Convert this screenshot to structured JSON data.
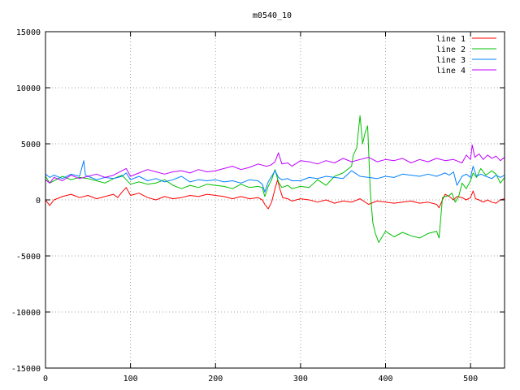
{
  "chart_data": {
    "type": "line",
    "title": "m0540_10",
    "xlabel": "",
    "ylabel": "",
    "xlim": [
      0,
      540
    ],
    "ylim": [
      -15000,
      15000
    ],
    "xticks": [
      0,
      100,
      200,
      300,
      400,
      500
    ],
    "yticks": [
      -15000,
      -10000,
      -5000,
      0,
      5000,
      10000,
      15000
    ],
    "grid": true,
    "legend_position": "top-right",
    "series": [
      {
        "name": "line 1",
        "color": "#ff0000",
        "x": [
          0,
          5,
          10,
          20,
          30,
          40,
          50,
          60,
          70,
          80,
          85,
          90,
          95,
          100,
          110,
          120,
          130,
          140,
          150,
          160,
          170,
          180,
          190,
          200,
          210,
          220,
          230,
          240,
          250,
          255,
          258,
          262,
          266,
          270,
          273,
          276,
          279,
          285,
          290,
          300,
          310,
          320,
          330,
          340,
          350,
          360,
          370,
          380,
          390,
          400,
          410,
          420,
          430,
          440,
          450,
          460,
          463,
          467,
          470,
          475,
          480,
          484,
          490,
          495,
          500,
          503,
          506,
          510,
          515,
          520,
          525,
          530,
          535,
          540
        ],
        "y": [
          0,
          -500,
          0,
          300,
          500,
          200,
          400,
          100,
          300,
          500,
          200,
          700,
          1100,
          400,
          600,
          200,
          0,
          300,
          100,
          200,
          400,
          300,
          500,
          400,
          300,
          100,
          300,
          100,
          200,
          0,
          -400,
          -800,
          -200,
          1000,
          1800,
          900,
          200,
          100,
          -100,
          100,
          0,
          -200,
          0,
          -300,
          -100,
          -200,
          100,
          -400,
          -100,
          -200,
          -300,
          -200,
          -100,
          -300,
          -200,
          -400,
          -700,
          0,
          500,
          300,
          0,
          300,
          200,
          0,
          200,
          800,
          100,
          0,
          -200,
          0,
          -200,
          -300,
          0,
          100
        ]
      },
      {
        "name": "line 2",
        "color": "#00c000",
        "x": [
          0,
          5,
          10,
          20,
          30,
          40,
          50,
          60,
          70,
          80,
          90,
          95,
          100,
          110,
          120,
          130,
          140,
          150,
          160,
          170,
          180,
          190,
          200,
          210,
          220,
          230,
          240,
          250,
          255,
          258,
          262,
          266,
          270,
          274,
          278,
          285,
          290,
          300,
          310,
          320,
          330,
          340,
          350,
          360,
          362,
          366,
          370,
          373,
          376,
          379,
          382,
          385,
          388,
          392,
          400,
          410,
          420,
          430,
          440,
          450,
          460,
          463,
          467,
          470,
          475,
          478,
          482,
          486,
          490,
          495,
          500,
          503,
          507,
          512,
          518,
          525,
          530,
          535,
          540
        ],
        "y": [
          2100,
          1500,
          1700,
          2100,
          1800,
          2000,
          1900,
          1700,
          1500,
          1900,
          2200,
          1800,
          1400,
          1600,
          1400,
          1500,
          1800,
          1300,
          1000,
          1300,
          1100,
          1400,
          1300,
          1200,
          1000,
          1400,
          1100,
          1200,
          1100,
          300,
          1200,
          1800,
          2700,
          1600,
          1100,
          1300,
          1000,
          1200,
          1100,
          1800,
          1300,
          2100,
          2400,
          3000,
          4000,
          4600,
          7500,
          5000,
          6000,
          6600,
          800,
          -2000,
          -3000,
          -3800,
          -2800,
          -3300,
          -2900,
          -3200,
          -3400,
          -3000,
          -2800,
          -3400,
          200,
          300,
          400,
          600,
          -200,
          300,
          1500,
          1000,
          1700,
          2400,
          2000,
          2800,
          2200,
          2600,
          2300,
          1500,
          2000
        ]
      },
      {
        "name": "line 3",
        "color": "#0080ff",
        "x": [
          0,
          5,
          10,
          20,
          30,
          40,
          45,
          47,
          50,
          60,
          70,
          80,
          90,
          95,
          100,
          110,
          120,
          130,
          140,
          150,
          160,
          170,
          180,
          190,
          200,
          210,
          220,
          230,
          240,
          250,
          255,
          258,
          262,
          266,
          270,
          274,
          278,
          285,
          290,
          300,
          310,
          320,
          330,
          340,
          350,
          360,
          370,
          380,
          390,
          400,
          410,
          420,
          430,
          440,
          450,
          460,
          470,
          475,
          480,
          484,
          490,
          495,
          500,
          503,
          507,
          512,
          518,
          525,
          530,
          535,
          540
        ],
        "y": [
          2300,
          2000,
          2200,
          1900,
          2300,
          2100,
          3500,
          2200,
          2100,
          1800,
          2000,
          1900,
          2100,
          2400,
          1800,
          2100,
          1700,
          1900,
          1600,
          1800,
          2100,
          1600,
          1800,
          1700,
          1800,
          1600,
          1700,
          1500,
          1800,
          1700,
          1400,
          700,
          1600,
          2100,
          2600,
          2000,
          1800,
          1900,
          1700,
          1700,
          2000,
          1900,
          2100,
          2000,
          1900,
          2600,
          2100,
          2000,
          1900,
          2100,
          2000,
          2300,
          2200,
          2100,
          2300,
          2100,
          2400,
          2200,
          2500,
          1300,
          2100,
          2300,
          2000,
          3000,
          2100,
          2300,
          2100,
          1900,
          2200,
          2000,
          2200
        ]
      },
      {
        "name": "line 4",
        "color": "#c000ff",
        "x": [
          0,
          5,
          10,
          20,
          30,
          40,
          50,
          60,
          70,
          80,
          90,
          95,
          100,
          110,
          120,
          130,
          140,
          150,
          160,
          170,
          180,
          190,
          200,
          210,
          220,
          230,
          240,
          250,
          260,
          265,
          270,
          274,
          278,
          285,
          290,
          300,
          310,
          320,
          330,
          340,
          350,
          360,
          370,
          380,
          390,
          400,
          410,
          420,
          430,
          440,
          450,
          460,
          470,
          480,
          490,
          495,
          500,
          502,
          505,
          510,
          515,
          520,
          525,
          530,
          535,
          540
        ],
        "y": [
          1800,
          1500,
          2000,
          1700,
          2200,
          1900,
          2100,
          2300,
          2000,
          2200,
          2600,
          2800,
          2100,
          2400,
          2700,
          2500,
          2300,
          2500,
          2600,
          2400,
          2700,
          2500,
          2600,
          2800,
          3000,
          2700,
          2900,
          3200,
          3000,
          3100,
          3400,
          4200,
          3200,
          3300,
          3000,
          3500,
          3400,
          3200,
          3500,
          3300,
          3700,
          3400,
          3600,
          3800,
          3400,
          3600,
          3500,
          3700,
          3300,
          3600,
          3400,
          3700,
          3500,
          3600,
          3300,
          4000,
          3600,
          4900,
          3800,
          4100,
          3600,
          4000,
          3700,
          3900,
          3500,
          3800
        ]
      }
    ]
  }
}
